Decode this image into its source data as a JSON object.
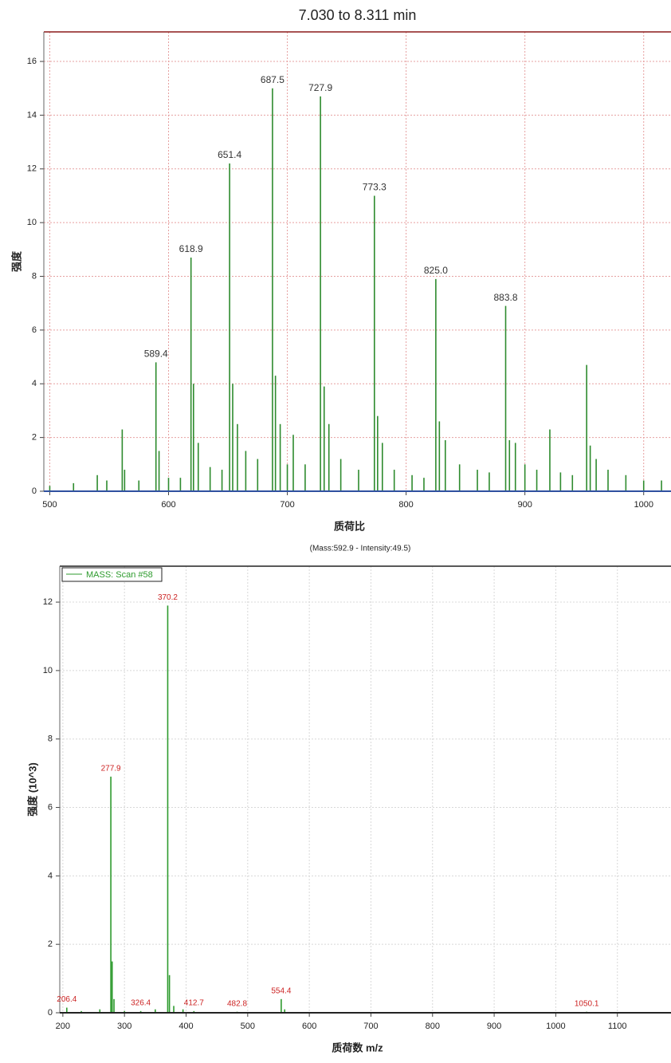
{
  "chart_data": [
    {
      "type": "stem",
      "title": "7.030 to 8.311 min",
      "x_label": "质荷比",
      "y_label": "强度",
      "xlim": [
        495,
        1023
      ],
      "ylim": [
        0,
        17.1
      ],
      "xticks": [
        500,
        600,
        700,
        800,
        900,
        1000
      ],
      "yticks": [
        0,
        2,
        4,
        6,
        8,
        10,
        12,
        14,
        16
      ],
      "grid": true,
      "grid_color": "#e6a0a0",
      "label_color": "#333333",
      "series": [
        {
          "color": "#2e8b2e",
          "x": [
            500,
            520,
            540,
            548,
            561,
            563,
            575,
            589.4,
            592,
            600,
            610,
            618.9,
            621,
            625,
            635,
            645,
            651.4,
            654,
            658,
            665,
            675,
            687.5,
            690,
            694,
            700,
            705,
            715,
            727.9,
            731,
            735,
            745,
            760,
            773.3,
            776,
            780,
            790,
            805,
            815,
            825.0,
            828,
            833,
            845,
            860,
            870,
            883.8,
            887,
            892,
            900,
            910,
            921,
            930,
            940,
            952,
            955,
            960,
            970,
            985,
            1000,
            1015
          ],
          "values": [
            0.2,
            0.3,
            0.6,
            0.4,
            2.3,
            0.8,
            0.4,
            4.8,
            1.5,
            0.5,
            0.5,
            8.7,
            4.0,
            1.8,
            0.9,
            0.8,
            12.2,
            4.0,
            2.5,
            1.5,
            1.2,
            15.0,
            4.3,
            2.5,
            1.0,
            2.1,
            1.0,
            14.7,
            3.9,
            2.5,
            1.2,
            0.8,
            11.0,
            2.8,
            1.8,
            0.8,
            0.6,
            0.5,
            7.9,
            2.6,
            1.9,
            1.0,
            0.8,
            0.7,
            6.9,
            1.9,
            1.8,
            1.0,
            0.8,
            2.3,
            0.7,
            0.6,
            4.7,
            1.7,
            1.2,
            0.8,
            0.6,
            0.4,
            0.4
          ],
          "labels": [
            null,
            null,
            null,
            null,
            null,
            null,
            null,
            "589.4",
            null,
            null,
            null,
            "618.9",
            null,
            null,
            null,
            null,
            "651.4",
            null,
            null,
            null,
            null,
            "687.5",
            null,
            null,
            null,
            null,
            null,
            "727.9",
            null,
            null,
            null,
            null,
            "773.3",
            null,
            null,
            null,
            null,
            null,
            "825.0",
            null,
            null,
            null,
            null,
            null,
            "883.8",
            null,
            null,
            null,
            null,
            null,
            null,
            null,
            null,
            null,
            null,
            null,
            null,
            null,
            null
          ]
        }
      ]
    },
    {
      "type": "stem",
      "subtitle": "(Mass:592.9 - Intensity:49.5)",
      "x_label": "质荷数 m/z",
      "y_label": "强度 (10^3)",
      "xlim": [
        195,
        1187
      ],
      "ylim": [
        0,
        13.05
      ],
      "xticks": [
        200,
        300,
        400,
        500,
        600,
        700,
        800,
        900,
        1000,
        1100
      ],
      "yticks": [
        0,
        2,
        4,
        6,
        8,
        10,
        12
      ],
      "grid": true,
      "grid_color": "#d8d8d8",
      "label_color": "#cc2222",
      "series": [
        {
          "name": "MASS: Scan #58",
          "color": "#2e9b2e",
          "x": [
            206.4,
            230,
            260,
            277.9,
            280,
            283,
            300,
            326.4,
            350,
            370.2,
            373,
            380,
            395,
            412.7,
            482.8,
            554.4,
            560,
            1050.1
          ],
          "values": [
            0.15,
            0.05,
            0.1,
            6.9,
            1.5,
            0.4,
            0.05,
            0.05,
            0.1,
            11.9,
            1.1,
            0.2,
            0.1,
            0.05,
            0.03,
            0.4,
            0.1,
            0.03
          ],
          "labels": [
            "206.4",
            null,
            null,
            "277.9",
            null,
            null,
            null,
            "326.4",
            null,
            "370.2",
            null,
            null,
            null,
            "412.7",
            "482.8",
            "554.4",
            null,
            "1050.1"
          ]
        }
      ]
    }
  ]
}
